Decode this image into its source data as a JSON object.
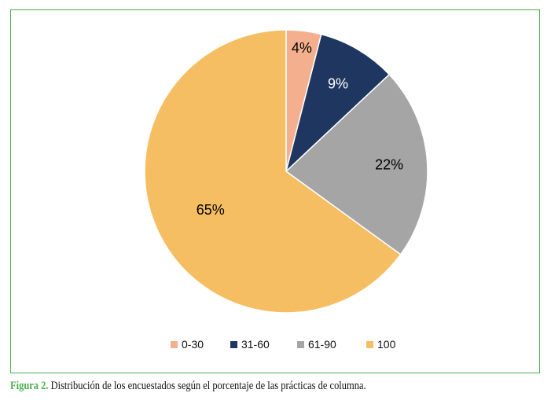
{
  "chart_data": {
    "type": "pie",
    "start": "top",
    "direction": "clockwise",
    "categories": [
      "0-30",
      "31-60",
      "61-90",
      "100"
    ],
    "values": [
      4,
      9,
      22,
      65
    ],
    "labels": [
      "4%",
      "9%",
      "22%",
      "65%"
    ],
    "colors": [
      "#f4b08e",
      "#1f3760",
      "#a5a5a5",
      "#f5be62"
    ],
    "label_colors": [
      "#000000",
      "#ffffff",
      "#000000",
      "#000000"
    ],
    "legend": "bottom"
  },
  "caption": {
    "figure": "Figura 2.",
    "text": " Distribución de los encuestados según el porcentaje de las prácticas de columna."
  }
}
